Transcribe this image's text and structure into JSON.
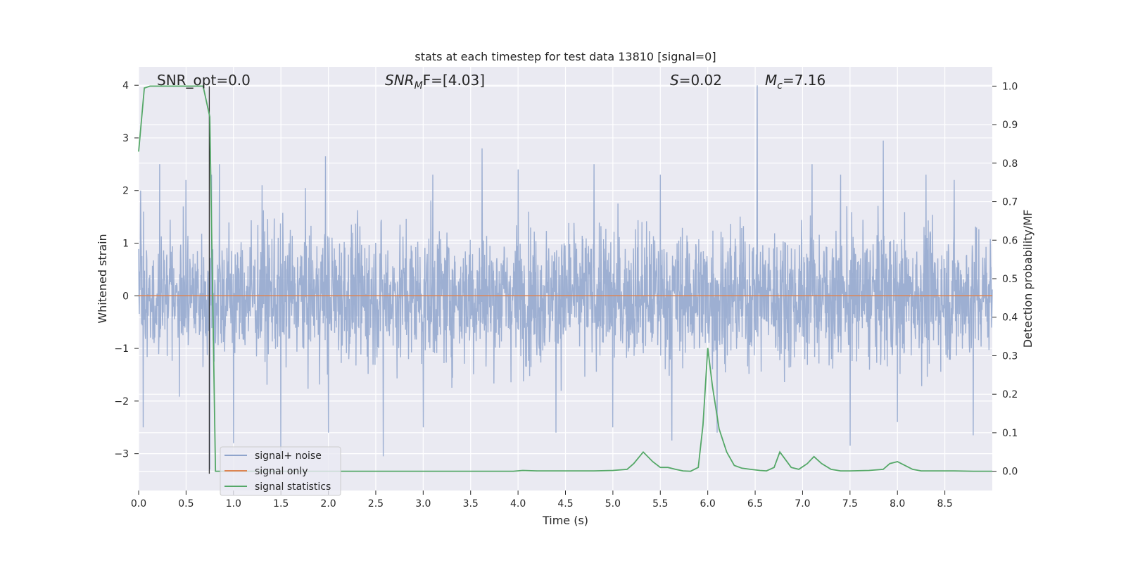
{
  "chart_data": {
    "type": "line",
    "title": "stats at each timestep for test data 13810 [signal=0]",
    "xlabel": "Time (s)",
    "ylabel": "Whitened strain",
    "y2label": "Detection probability/MF",
    "xlim": [
      0,
      9.0
    ],
    "ylim": [
      -3.7,
      4.35
    ],
    "y2lim": [
      -0.05,
      1.05
    ],
    "x_ticks": [
      "0.0",
      "0.5",
      "1.0",
      "1.5",
      "2.0",
      "2.5",
      "3.0",
      "3.5",
      "4.0",
      "4.5",
      "5.0",
      "5.5",
      "6.0",
      "6.5",
      "7.0",
      "7.5",
      "8.0",
      "8.5"
    ],
    "y_ticks": [
      "4",
      "3",
      "2",
      "1",
      "0",
      "−1",
      "−2",
      "−3"
    ],
    "y2_ticks": [
      "1.0",
      "0.9",
      "0.8",
      "0.7",
      "0.6",
      "0.5",
      "0.4",
      "0.3",
      "0.2",
      "0.1",
      "0.0"
    ],
    "grid": true,
    "legend_placement": "lower-left",
    "annotations": [
      {
        "label": "SNR_opt=0.0"
      },
      {
        "label": "SNR_MF=[4.03]",
        "main": "SNR",
        "sub": "M",
        "rest": "F=[4.03]"
      },
      {
        "label": "S=0.02",
        "main": "S",
        "rest": "=0.02"
      },
      {
        "label": "M_c=7.16",
        "main": "M",
        "sub": "c",
        "rest": "=7.16"
      }
    ],
    "vertical_marker_x": 0.745,
    "series": [
      {
        "name": "signal+ noise",
        "color": "#8fa4cc",
        "axis": "left",
        "description": "dense whitened noise, roughly within ±2, peak near 4.0 at x≈6.52, dips to about −3.3 near x≈0.75",
        "spikes_up": [
          [
            0.02,
            2.0
          ],
          [
            0.22,
            2.5
          ],
          [
            0.5,
            2.2
          ],
          [
            0.77,
            2.3
          ],
          [
            0.85,
            2.5
          ],
          [
            1.3,
            2.1
          ],
          [
            1.97,
            2.65
          ],
          [
            2.58,
            2.6
          ],
          [
            3.1,
            2.3
          ],
          [
            3.62,
            2.8
          ],
          [
            4.0,
            2.4
          ],
          [
            4.8,
            2.5
          ],
          [
            5.5,
            2.3
          ],
          [
            6.52,
            4.0
          ],
          [
            7.1,
            2.5
          ],
          [
            7.4,
            2.3
          ],
          [
            7.85,
            2.95
          ],
          [
            8.3,
            2.3
          ],
          [
            8.6,
            2.2
          ]
        ],
        "spikes_down": [
          [
            0.05,
            -2.5
          ],
          [
            0.75,
            -3.3
          ],
          [
            1.0,
            -2.8
          ],
          [
            1.5,
            -3.0
          ],
          [
            2.0,
            -2.6
          ],
          [
            2.58,
            -3.05
          ],
          [
            3.0,
            -2.5
          ],
          [
            4.4,
            -2.6
          ],
          [
            5.0,
            -2.5
          ],
          [
            5.62,
            -2.75
          ],
          [
            6.1,
            -2.6
          ],
          [
            7.5,
            -2.85
          ],
          [
            8.0,
            -2.4
          ],
          [
            8.8,
            -2.65
          ]
        ]
      },
      {
        "name": "signal only",
        "color": "#dd8452",
        "axis": "left",
        "x": [
          0,
          9.0
        ],
        "y": [
          0,
          0
        ]
      },
      {
        "name": "signal statistics",
        "color": "#55a868",
        "axis": "right",
        "x": [
          0.0,
          0.06,
          0.12,
          0.2,
          0.3,
          0.4,
          0.5,
          0.6,
          0.68,
          0.75,
          0.81,
          0.9,
          1.0,
          1.5,
          2.0,
          2.5,
          3.0,
          3.5,
          3.95,
          4.05,
          4.2,
          4.5,
          4.8,
          5.0,
          5.15,
          5.22,
          5.32,
          5.42,
          5.5,
          5.58,
          5.66,
          5.74,
          5.82,
          5.9,
          5.95,
          6.0,
          6.05,
          6.12,
          6.2,
          6.28,
          6.36,
          6.45,
          6.55,
          6.62,
          6.7,
          6.76,
          6.82,
          6.88,
          6.96,
          7.05,
          7.12,
          7.2,
          7.3,
          7.4,
          7.5,
          7.7,
          7.85,
          7.92,
          8.0,
          8.08,
          8.16,
          8.25,
          8.4,
          8.6,
          8.8,
          9.0
        ],
        "y": [
          0.83,
          0.995,
          1.0,
          1.0,
          1.0,
          1.0,
          1.0,
          1.0,
          1.0,
          0.92,
          0.0,
          0.0,
          0.0,
          0.0,
          0.0,
          0.0,
          0.0,
          0.0,
          0.0,
          0.002,
          0.001,
          0.001,
          0.001,
          0.002,
          0.005,
          0.02,
          0.05,
          0.025,
          0.01,
          0.01,
          0.005,
          0.001,
          0.0,
          0.01,
          0.12,
          0.32,
          0.22,
          0.11,
          0.05,
          0.015,
          0.008,
          0.005,
          0.002,
          0.001,
          0.01,
          0.05,
          0.03,
          0.01,
          0.005,
          0.02,
          0.038,
          0.02,
          0.005,
          0.001,
          0.001,
          0.002,
          0.005,
          0.02,
          0.025,
          0.015,
          0.005,
          0.001,
          0.001,
          0.001,
          0.0,
          0.0
        ]
      }
    ]
  }
}
